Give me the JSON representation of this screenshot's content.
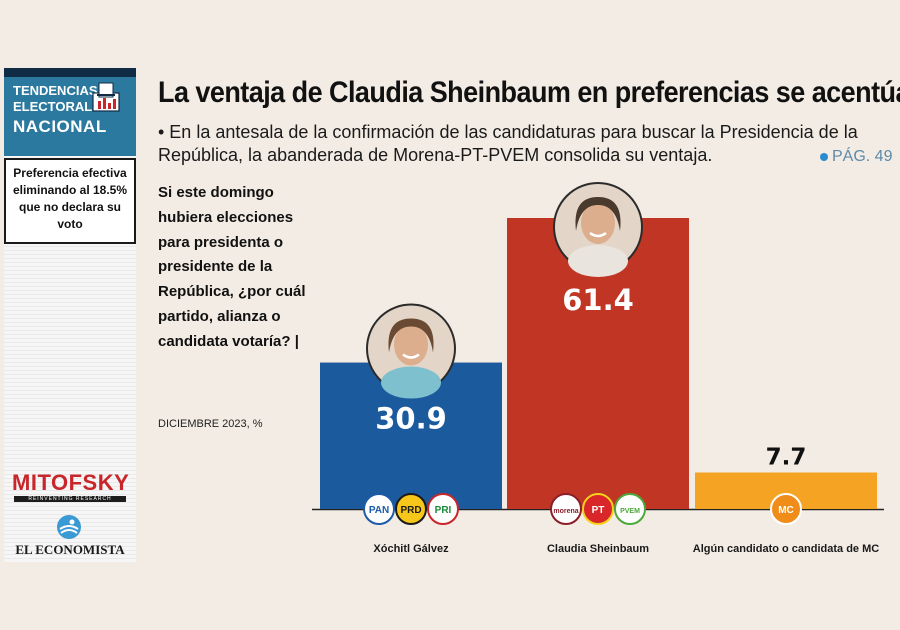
{
  "sidebar": {
    "tag_line1": "TENDENCIAS",
    "tag_line2": "ELECTORALES",
    "tag_line3": "NACIONAL",
    "note": [
      "Preferencia efectiva",
      "eliminando al 18.5%",
      "que no declara su",
      "voto"
    ],
    "pollster": "MITOFSKY",
    "pollster_tagline": "REINVENTING RESEARCH",
    "publisher": "EL ECONOMISTA"
  },
  "header": {
    "title": "La ventaja de Claudia Sheinbaum en preferencias se acentúa",
    "subtitle": "• En la antesala de la confirmación de las candidaturas para buscar la Presidencia de la República, la abanderada de Morena-PT-PVEM consolida su ventaja.",
    "page_ref": "PÁG. 49"
  },
  "question": "Si este domingo hubiera elecciones para presidenta o presidente de la República, ¿por cuál partido, alianza o candidata votaría? |",
  "survey_date": "DICIEMBRE 2023, %",
  "colors": {
    "xochitl": "#1c5a9e",
    "claudia": "#c03524",
    "mc": "#f4a322"
  },
  "chart_data": {
    "type": "bar",
    "categories": [
      "Xóchitl Gálvez",
      "Claudia Sheinbaum",
      "Algún candidato o candidata de MC"
    ],
    "values": [
      30.9,
      61.4,
      7.7
    ],
    "value_labels": [
      "30.9",
      "61.4",
      "7.7"
    ],
    "party_logos": [
      [
        "PAN",
        "PRD",
        "PRI"
      ],
      [
        "morena",
        "PT",
        "PVEM"
      ],
      [
        "MC"
      ]
    ],
    "title": "",
    "xlabel": "",
    "ylabel": "",
    "ylim": [
      0,
      61.4
    ],
    "grid": false
  }
}
